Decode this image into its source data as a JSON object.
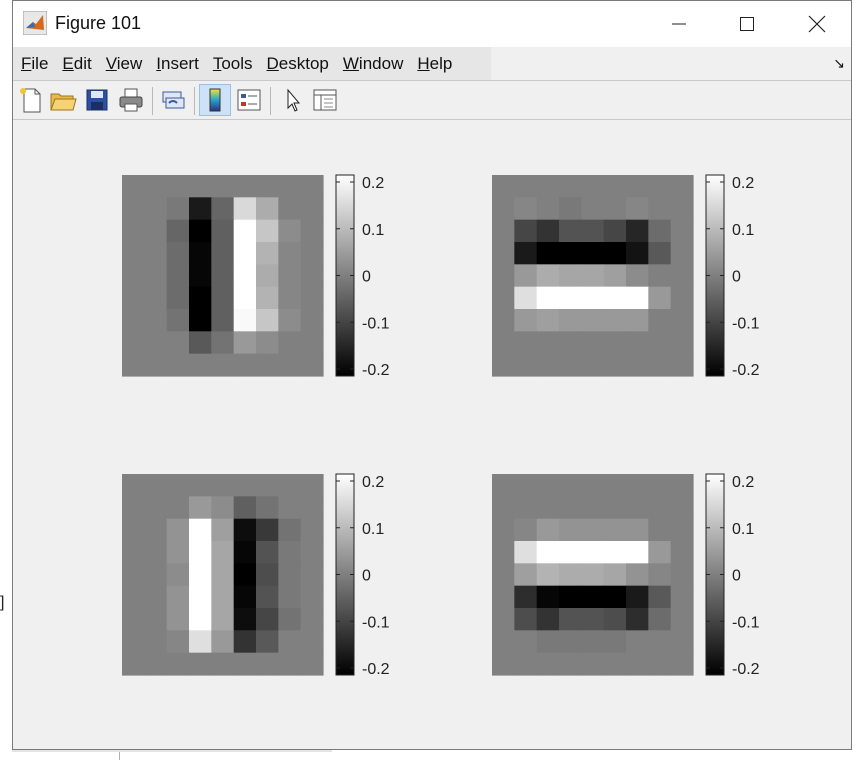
{
  "window": {
    "title": "Figure 101"
  },
  "window_controls": {
    "minimize": "—",
    "maximize": "☐",
    "close": "✕"
  },
  "menu": {
    "items": [
      {
        "mnemonic": "F",
        "rest": "ile"
      },
      {
        "mnemonic": "E",
        "rest": "dit"
      },
      {
        "mnemonic": "V",
        "rest": "iew"
      },
      {
        "mnemonic": "I",
        "rest": "nsert"
      },
      {
        "mnemonic": "T",
        "rest": "ools"
      },
      {
        "mnemonic": "D",
        "rest": "esktop"
      },
      {
        "mnemonic": "W",
        "rest": "indow"
      },
      {
        "mnemonic": "H",
        "rest": "elp"
      }
    ],
    "dock_arrow": "↘"
  },
  "toolbar": {
    "buttons": [
      {
        "icon": "new-figure-icon"
      },
      {
        "icon": "open-file-icon"
      },
      {
        "icon": "save-icon"
      },
      {
        "icon": "print-icon"
      },
      {
        "icon": "link-plot-icon"
      },
      {
        "icon": "insert-colorbar-icon",
        "pressed": true
      },
      {
        "icon": "insert-legend-icon"
      },
      {
        "icon": "edit-plot-pointer-icon"
      },
      {
        "icon": "property-inspector-icon"
      }
    ]
  },
  "colorbar": {
    "range": [
      -0.2,
      0.2
    ],
    "ticks": [
      0.2,
      0.1,
      0,
      -0.1,
      -0.2
    ],
    "tick_labels": [
      "0.2",
      "0.1",
      "0",
      "-0.1",
      "-0.2"
    ]
  },
  "chart_data": [
    {
      "type": "heatmap",
      "position": "top-left",
      "colormap": "gray",
      "clim": [
        -0.2,
        0.2
      ],
      "z": [
        [
          0,
          0,
          0,
          0,
          0,
          0,
          0,
          0,
          0
        ],
        [
          0,
          0,
          -0.01,
          -0.16,
          -0.04,
          0.14,
          0.07,
          0,
          0
        ],
        [
          0,
          0,
          -0.04,
          -0.2,
          -0.05,
          0.2,
          0.11,
          0.02,
          0
        ],
        [
          0,
          0,
          -0.03,
          -0.19,
          -0.05,
          0.22,
          0.08,
          0.01,
          0
        ],
        [
          0,
          0,
          -0.03,
          -0.19,
          -0.05,
          0.22,
          0.07,
          0.01,
          0
        ],
        [
          0,
          0,
          -0.03,
          -0.2,
          -0.05,
          0.2,
          0.08,
          0.01,
          0
        ],
        [
          0,
          0,
          -0.02,
          -0.2,
          -0.05,
          0.19,
          0.11,
          0.02,
          0
        ],
        [
          0,
          0,
          0,
          -0.06,
          -0.02,
          0.04,
          0.02,
          0,
          0
        ],
        [
          0,
          0,
          0,
          0,
          0,
          0,
          0,
          0,
          0
        ]
      ]
    },
    {
      "type": "heatmap",
      "position": "top-right",
      "colormap": "gray",
      "clim": [
        -0.2,
        0.2
      ],
      "z": [
        [
          0,
          0,
          0,
          0,
          0,
          0,
          0,
          0,
          0
        ],
        [
          0,
          0.01,
          0,
          -0.01,
          0,
          0,
          0.01,
          0,
          0
        ],
        [
          0,
          -0.09,
          -0.12,
          -0.07,
          -0.07,
          -0.09,
          -0.14,
          -0.03,
          0
        ],
        [
          0,
          -0.16,
          -0.2,
          -0.21,
          -0.21,
          -0.21,
          -0.17,
          -0.06,
          0
        ],
        [
          0,
          0.04,
          0.07,
          0.06,
          0.06,
          0.05,
          0.02,
          0,
          0
        ],
        [
          0,
          0.15,
          0.22,
          0.21,
          0.22,
          0.21,
          0.22,
          0.04,
          0
        ],
        [
          0,
          0.04,
          0.05,
          0.04,
          0.04,
          0.04,
          0.04,
          0,
          0
        ],
        [
          0,
          0,
          0,
          0,
          0,
          0,
          0,
          0,
          0
        ],
        [
          0,
          0,
          0,
          0,
          0,
          0,
          0,
          0,
          0
        ]
      ]
    },
    {
      "type": "heatmap",
      "position": "bottom-left",
      "colormap": "gray",
      "clim": [
        -0.2,
        0.2
      ],
      "z": [
        [
          0,
          0,
          0,
          0,
          0,
          0,
          0,
          0,
          0
        ],
        [
          0,
          0,
          0,
          0.04,
          0.02,
          -0.05,
          -0.02,
          0,
          0
        ],
        [
          0,
          0,
          0.03,
          0.22,
          0.05,
          -0.18,
          -0.11,
          -0.02,
          0
        ],
        [
          0,
          0,
          0.03,
          0.22,
          0.06,
          -0.19,
          -0.07,
          -0.01,
          0
        ],
        [
          0,
          0,
          0.02,
          0.2,
          0.06,
          -0.2,
          -0.08,
          -0.01,
          0
        ],
        [
          0,
          0,
          0.03,
          0.22,
          0.06,
          -0.19,
          -0.07,
          -0.01,
          0
        ],
        [
          0,
          0,
          0.03,
          0.22,
          0.06,
          -0.18,
          -0.09,
          -0.02,
          0
        ],
        [
          0,
          0,
          0.01,
          0.15,
          0.04,
          -0.12,
          -0.06,
          0,
          0
        ],
        [
          0,
          0,
          0,
          0,
          0,
          0,
          0,
          0,
          0
        ]
      ]
    },
    {
      "type": "heatmap",
      "position": "bottom-right",
      "colormap": "gray",
      "clim": [
        -0.2,
        0.2
      ],
      "z": [
        [
          0,
          0,
          0,
          0,
          0,
          0,
          0,
          0,
          0
        ],
        [
          0,
          0,
          0,
          0,
          0,
          0,
          0,
          0,
          0
        ],
        [
          0,
          0.01,
          0.04,
          0.03,
          0.03,
          0.03,
          0.03,
          0,
          0
        ],
        [
          0,
          0.15,
          0.22,
          0.2,
          0.2,
          0.21,
          0.22,
          0.04,
          0
        ],
        [
          0,
          0.05,
          0.08,
          0.07,
          0.07,
          0.06,
          0.03,
          0.01,
          0
        ],
        [
          0,
          -0.13,
          -0.19,
          -0.21,
          -0.21,
          -0.2,
          -0.16,
          -0.06,
          0
        ],
        [
          0,
          -0.08,
          -0.12,
          -0.07,
          -0.07,
          -0.08,
          -0.13,
          -0.03,
          0
        ],
        [
          0,
          0,
          -0.01,
          -0.01,
          -0.01,
          -0.01,
          0,
          0,
          0
        ],
        [
          0,
          0,
          0,
          0,
          0,
          0,
          0,
          0,
          0
        ]
      ]
    }
  ]
}
